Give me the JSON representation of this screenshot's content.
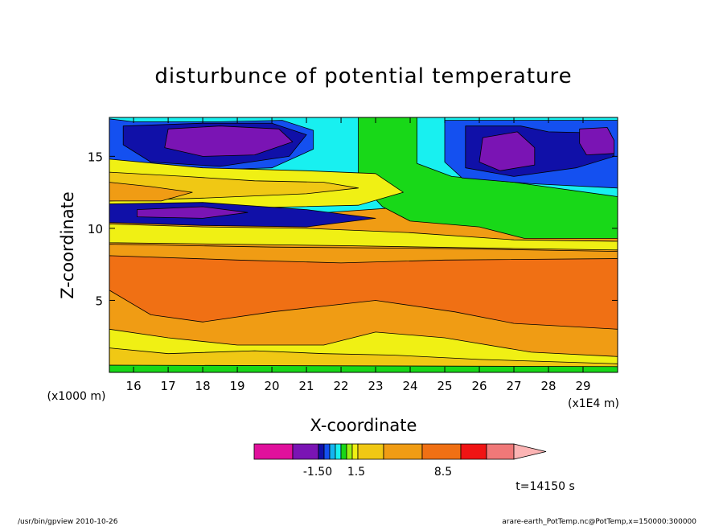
{
  "chart_data": {
    "type": "heatmap",
    "title": "disturbunce of potential temperature",
    "xlabel": "X-coordinate",
    "ylabel": "Z-coordinate",
    "x_unit_note": "(x1E4 m)",
    "y_unit_note": "(x1000 m)",
    "xlim": [
      15.3,
      30.0
    ],
    "ylim": [
      0.0,
      17.7
    ],
    "xticks": [
      16,
      17,
      18,
      19,
      20,
      21,
      22,
      23,
      24,
      25,
      26,
      27,
      28,
      29
    ],
    "yticks": [
      5,
      10,
      15
    ],
    "colorbar": {
      "colors": [
        "#e0109c",
        "#7a14b4",
        "#1010a8",
        "#1450f0",
        "#14b4f0",
        "#18f0f0",
        "#18d818",
        "#9cf014",
        "#f0f014",
        "#f0c814",
        "#f09c14",
        "#f07014",
        "#f01414",
        "#f07878",
        "#fcb4b4"
      ],
      "tick_labels": [
        "-1.50",
        "1.5",
        "8.5"
      ],
      "extend": "max"
    },
    "regions": [
      {
        "level": "cyan",
        "color": "#18f0f0",
        "points": [
          [
            15.3,
            17.7
          ],
          [
            30,
            17.7
          ],
          [
            30,
            11
          ],
          [
            27,
            11
          ],
          [
            24,
            11.5
          ],
          [
            21,
            11
          ],
          [
            18,
            10.5
          ],
          [
            15.3,
            10.5
          ]
        ]
      },
      {
        "level": "blue-top-left",
        "color": "#1450f0",
        "points": [
          [
            15.3,
            17.6
          ],
          [
            16,
            17.4
          ],
          [
            18.5,
            17.4
          ],
          [
            20.3,
            17.5
          ],
          [
            21.2,
            16.8
          ],
          [
            21.2,
            15.5
          ],
          [
            20,
            14.2
          ],
          [
            17.5,
            14
          ],
          [
            16,
            14.5
          ],
          [
            15.3,
            14.8
          ]
        ]
      },
      {
        "level": "darkblue-top-left",
        "color": "#1010a8",
        "points": [
          [
            15.7,
            17.1
          ],
          [
            18,
            17.3
          ],
          [
            20,
            17.3
          ],
          [
            21,
            16.5
          ],
          [
            20.5,
            15
          ],
          [
            18.5,
            14.3
          ],
          [
            16.5,
            14.6
          ],
          [
            15.7,
            15.8
          ]
        ]
      },
      {
        "level": "purple-top-left",
        "color": "#7a14b4",
        "points": [
          [
            17,
            16.9
          ],
          [
            18.5,
            17.1
          ],
          [
            20.2,
            16.9
          ],
          [
            20.6,
            16
          ],
          [
            19.5,
            15.1
          ],
          [
            18,
            15
          ],
          [
            16.9,
            15.6
          ]
        ]
      },
      {
        "level": "green-right",
        "color": "#18d818",
        "points": [
          [
            22.5,
            17.7
          ],
          [
            30,
            17.7
          ],
          [
            30,
            9.3
          ],
          [
            27.3,
            9.3
          ],
          [
            26,
            10.1
          ],
          [
            24,
            10.5
          ],
          [
            23.2,
            11.5
          ],
          [
            22.5,
            13.3
          ]
        ]
      },
      {
        "level": "cyan-right",
        "color": "#18f0f0",
        "points": [
          [
            24.2,
            17.7
          ],
          [
            30,
            17.7
          ],
          [
            30,
            12.2
          ],
          [
            27,
            13.2
          ],
          [
            25.2,
            13.6
          ],
          [
            24.2,
            14.5
          ]
        ]
      },
      {
        "level": "blue-right",
        "color": "#1450f0",
        "points": [
          [
            25,
            17.5
          ],
          [
            30,
            17.5
          ],
          [
            30,
            12.8
          ],
          [
            27.5,
            13.1
          ],
          [
            25.5,
            13.5
          ],
          [
            25,
            14.6
          ]
        ]
      },
      {
        "level": "darkblue-right",
        "color": "#1010a8",
        "points": [
          [
            25.6,
            17.1
          ],
          [
            27.2,
            17.1
          ],
          [
            28,
            16.7
          ],
          [
            29.8,
            16.6
          ],
          [
            29.9,
            15
          ],
          [
            28.8,
            14.2
          ],
          [
            27,
            13.6
          ],
          [
            25.6,
            14.2
          ]
        ]
      },
      {
        "level": "purple-right",
        "color": "#7a14b4",
        "points": [
          [
            26.1,
            16.3
          ],
          [
            27.1,
            16.7
          ],
          [
            27.6,
            15.6
          ],
          [
            27.6,
            14.4
          ],
          [
            26.6,
            14
          ],
          [
            26,
            14.6
          ]
        ]
      },
      {
        "level": "purple-far-right",
        "color": "#7a14b4",
        "points": [
          [
            28.9,
            16.9
          ],
          [
            29.7,
            17
          ],
          [
            29.9,
            16.1
          ],
          [
            29.9,
            15.2
          ],
          [
            29.1,
            15.1
          ],
          [
            28.9,
            15.9
          ]
        ]
      },
      {
        "level": "yellow-upper-left",
        "color": "#f0f014",
        "points": [
          [
            15.3,
            14.8
          ],
          [
            18,
            14.2
          ],
          [
            21,
            14
          ],
          [
            23,
            13.8
          ],
          [
            23.8,
            12.5
          ],
          [
            22.5,
            11.6
          ],
          [
            19,
            11.4
          ],
          [
            15.3,
            11.6
          ]
        ]
      },
      {
        "level": "light-orange-upper-left",
        "color": "#f0c814",
        "points": [
          [
            15.3,
            13.9
          ],
          [
            17.5,
            13.6
          ],
          [
            19.5,
            13.3
          ],
          [
            21.5,
            13.2
          ],
          [
            22.5,
            12.8
          ],
          [
            21,
            12.4
          ],
          [
            18,
            12.1
          ],
          [
            15.3,
            11.9
          ]
        ]
      },
      {
        "level": "orange-upper-left",
        "color": "#f09c14",
        "points": [
          [
            15.3,
            13.2
          ],
          [
            16.5,
            12.9
          ],
          [
            17.7,
            12.5
          ],
          [
            16.8,
            11.9
          ],
          [
            15.3,
            11.9
          ]
        ]
      },
      {
        "level": "darkblue-jet",
        "color": "#1010a8",
        "points": [
          [
            15.3,
            11.7
          ],
          [
            18,
            11.8
          ],
          [
            21,
            11.3
          ],
          [
            23,
            10.7
          ],
          [
            21,
            10.1
          ],
          [
            18,
            10.2
          ],
          [
            15.3,
            10.4
          ]
        ]
      },
      {
        "level": "purple-jet",
        "color": "#7a14b4",
        "points": [
          [
            16.1,
            11.3
          ],
          [
            18,
            11.5
          ],
          [
            19.3,
            11.1
          ],
          [
            18,
            10.7
          ],
          [
            16.1,
            10.8
          ]
        ]
      },
      {
        "level": "yellow-band",
        "color": "#f0f014",
        "points": [
          [
            15.3,
            10.3
          ],
          [
            18,
            10.1
          ],
          [
            21,
            10
          ],
          [
            24,
            9.7
          ],
          [
            27,
            9.2
          ],
          [
            30,
            9.1
          ],
          [
            30,
            8.5
          ],
          [
            27,
            8.6
          ],
          [
            22,
            8.8
          ],
          [
            15.3,
            9
          ]
        ]
      },
      {
        "level": "orange-main",
        "color": "#f09c14",
        "points": [
          [
            15.3,
            8.9
          ],
          [
            20,
            8.7
          ],
          [
            25,
            8.6
          ],
          [
            30,
            8.4
          ],
          [
            30,
            0
          ],
          [
            15.3,
            0
          ]
        ]
      },
      {
        "level": "dark-orange-core",
        "color": "#f07014",
        "points": [
          [
            15.3,
            8.1
          ],
          [
            19,
            7.8
          ],
          [
            22,
            7.6
          ],
          [
            25,
            7.8
          ],
          [
            30,
            7.9
          ],
          [
            30,
            3
          ],
          [
            27,
            3.4
          ],
          [
            25.3,
            4.2
          ],
          [
            23,
            5
          ],
          [
            20,
            4.2
          ],
          [
            18,
            3.5
          ],
          [
            16.5,
            4
          ],
          [
            15.3,
            5.7
          ]
        ]
      },
      {
        "level": "yellow-bottom",
        "color": "#f0f014",
        "points": [
          [
            15.3,
            3
          ],
          [
            17,
            2.4
          ],
          [
            19,
            1.9
          ],
          [
            21.5,
            1.9
          ],
          [
            23,
            2.8
          ],
          [
            25,
            2.4
          ],
          [
            27.5,
            1.4
          ],
          [
            30,
            1.1
          ],
          [
            30,
            0
          ],
          [
            15.3,
            0
          ]
        ]
      },
      {
        "level": "light-orange-bottom",
        "color": "#f0c814",
        "points": [
          [
            15.3,
            1.7
          ],
          [
            17,
            1.3
          ],
          [
            19.5,
            1.5
          ],
          [
            21.5,
            1.3
          ],
          [
            23.5,
            1.2
          ],
          [
            26,
            0.9
          ],
          [
            30,
            0.6
          ],
          [
            30,
            0
          ],
          [
            15.3,
            0
          ]
        ]
      },
      {
        "level": "green-ground",
        "color": "#18d818",
        "points": [
          [
            15.3,
            0.5
          ],
          [
            30,
            0.4
          ],
          [
            30,
            0
          ],
          [
            15.3,
            0
          ]
        ]
      }
    ]
  },
  "meta": {
    "time_label": "t=14150 s",
    "footer_left": "/usr/bin/gpview   2010-10-26",
    "footer_right": "arare-earth_PotTemp.nc@PotTemp,x=150000:300000"
  }
}
